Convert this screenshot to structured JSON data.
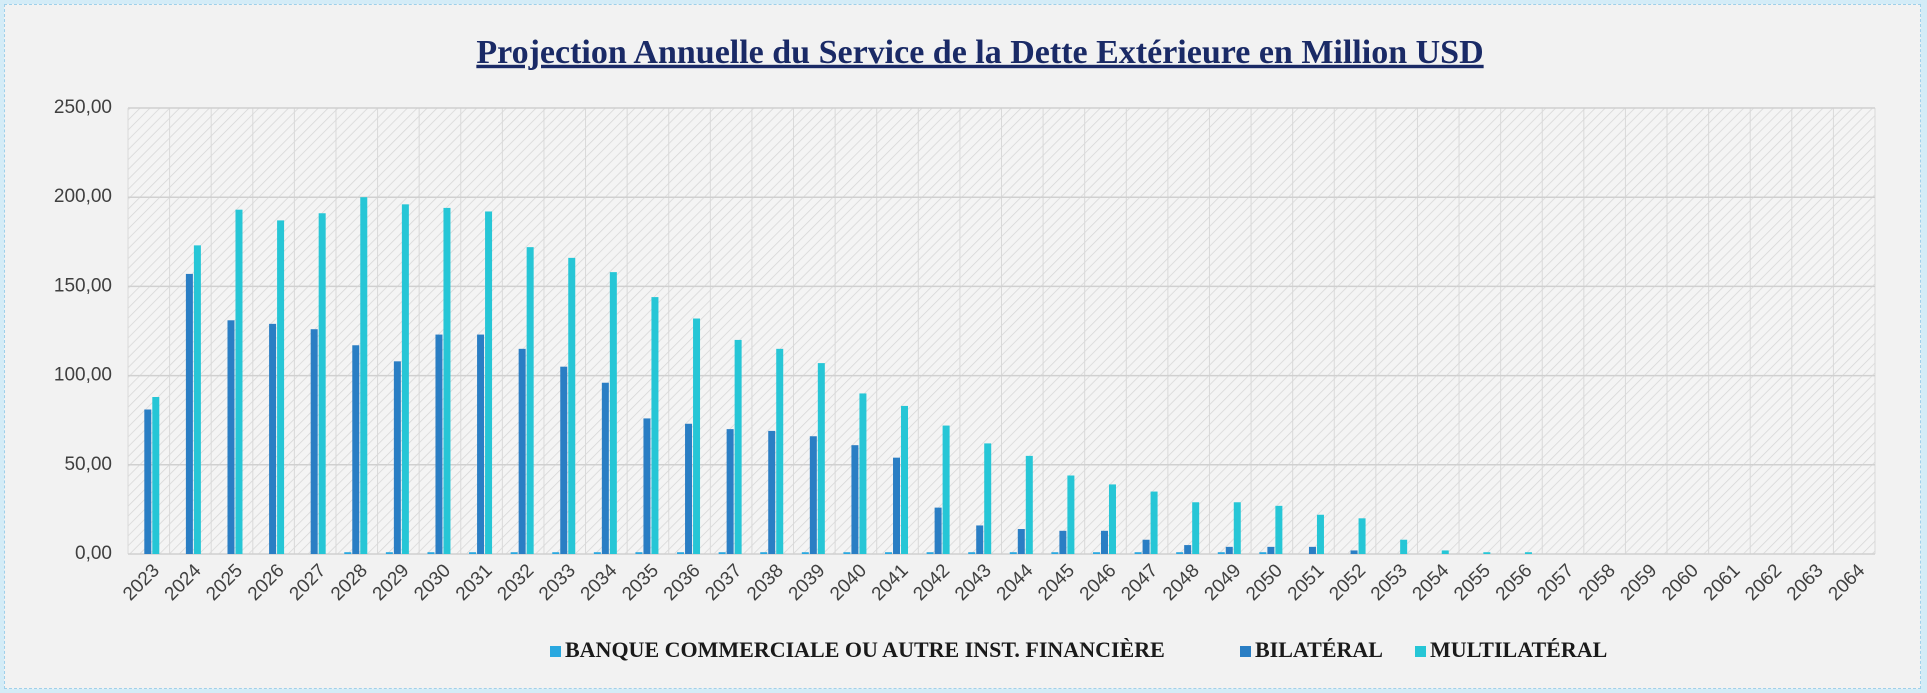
{
  "chart_data": {
    "type": "bar",
    "title": "Projection Annuelle du Service de la Dette Extérieure en Million USD",
    "categories": [
      "2023",
      "2024",
      "2025",
      "2026",
      "2027",
      "2028",
      "2029",
      "2030",
      "2031",
      "2032",
      "2033",
      "2034",
      "2035",
      "2036",
      "2037",
      "2038",
      "2039",
      "2040",
      "2041",
      "2042",
      "2043",
      "2044",
      "2045",
      "2046",
      "2047",
      "2048",
      "2049",
      "2050",
      "2051",
      "2052",
      "2053",
      "2054",
      "2055",
      "2056",
      "2057",
      "2058",
      "2059",
      "2060",
      "2061",
      "2062",
      "2063",
      "2064"
    ],
    "series": [
      {
        "name": "BANQUE COMMERCIALE OU AUTRE INST. FINANCIÈRE",
        "color": "#29a8e0",
        "values": [
          0,
          0,
          0,
          0,
          0,
          1,
          1,
          1,
          1,
          1,
          1,
          1,
          1,
          1,
          1,
          1,
          1,
          1,
          1,
          1,
          1,
          1,
          1,
          1,
          1,
          1,
          1,
          1,
          0,
          0,
          0,
          0,
          0,
          0,
          0,
          0,
          0,
          0,
          0,
          0,
          0,
          0
        ]
      },
      {
        "name": "BILATÉRAL",
        "color": "#2a7ec4",
        "values": [
          81,
          157,
          131,
          129,
          126,
          117,
          108,
          123,
          123,
          115,
          105,
          96,
          76,
          73,
          70,
          69,
          66,
          61,
          54,
          26,
          16,
          14,
          13,
          13,
          8,
          5,
          4,
          4,
          4,
          2,
          0,
          0,
          0,
          0,
          0,
          0,
          0,
          0,
          0,
          0,
          0,
          0
        ]
      },
      {
        "name": "MULTILATÉRAL",
        "color": "#26c6d6",
        "values": [
          88,
          173,
          193,
          187,
          191,
          200,
          196,
          194,
          192,
          172,
          166,
          158,
          144,
          132,
          120,
          115,
          107,
          90,
          83,
          72,
          62,
          55,
          44,
          39,
          35,
          29,
          29,
          27,
          22,
          20,
          8,
          2,
          1,
          1,
          0,
          0,
          0,
          0,
          0,
          0,
          0,
          0
        ]
      }
    ],
    "ylim": [
      0,
      250
    ],
    "yticks": [
      {
        "value": 0,
        "label": "0,00"
      },
      {
        "value": 50,
        "label": "50,00"
      },
      {
        "value": 100,
        "label": "100,00"
      },
      {
        "value": 150,
        "label": "150,00"
      },
      {
        "value": 200,
        "label": "200,00"
      },
      {
        "value": 250,
        "label": "250,00"
      }
    ],
    "grid": true,
    "legend": "bottom"
  }
}
